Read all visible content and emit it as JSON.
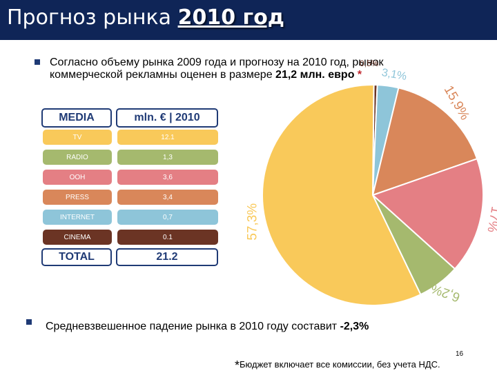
{
  "header": {
    "title_prefix": "Прогноз рынка",
    "title_year": "2010 год"
  },
  "bullets": {
    "first_line1": "Согласно объему рынка 2009 года и прогнозу на 2010 год, рынок",
    "first_line2_pre": "коммерческой рекламны оценен в размере ",
    "first_line2_em": "21,2 млн. евро",
    "first_line2_star": " *",
    "second_pre": "Средневзвешенное падение рынка в 2010 году составит ",
    "second_em": "-2,3%"
  },
  "table": {
    "head_media": "MEDIA",
    "head_value": "mln. € | 2010",
    "rows": [
      {
        "media": "TV",
        "value": "12.1",
        "color": "#f9c95a"
      },
      {
        "media": "RADIO",
        "value": "1,3",
        "color": "#a5b96e"
      },
      {
        "media": "OOH",
        "value": "3,6",
        "color": "#e47f84"
      },
      {
        "media": "PRESS",
        "value": "3,4",
        "color": "#d9875a"
      },
      {
        "media": "INTERNET",
        "value": "0,7",
        "color": "#8ec5d9"
      },
      {
        "media": "CINEMA",
        "value": "0.1",
        "color": "#6b3424"
      }
    ],
    "total_label": "TOTAL",
    "total_value": "21.2",
    "border_color": "#1f3a75"
  },
  "chart_data": {
    "type": "pie",
    "slices": [
      {
        "label": "0,5%",
        "value": 0.5,
        "color": "#6b3424"
      },
      {
        "label": "3,1%",
        "value": 3.1,
        "color": "#8ec5d9"
      },
      {
        "label": "15,9%",
        "value": 15.9,
        "color": "#d9875a"
      },
      {
        "label": "17%",
        "value": 17,
        "color": "#e47f84"
      },
      {
        "label": "6,2%",
        "value": 6.2,
        "color": "#a5b96e"
      },
      {
        "label": "57,3%",
        "value": 57.3,
        "color": "#f9c95a"
      }
    ]
  },
  "footnote": {
    "star": "*",
    "text": "Бюджет включает все комиссии, без учета НДС."
  },
  "page_number": "16"
}
